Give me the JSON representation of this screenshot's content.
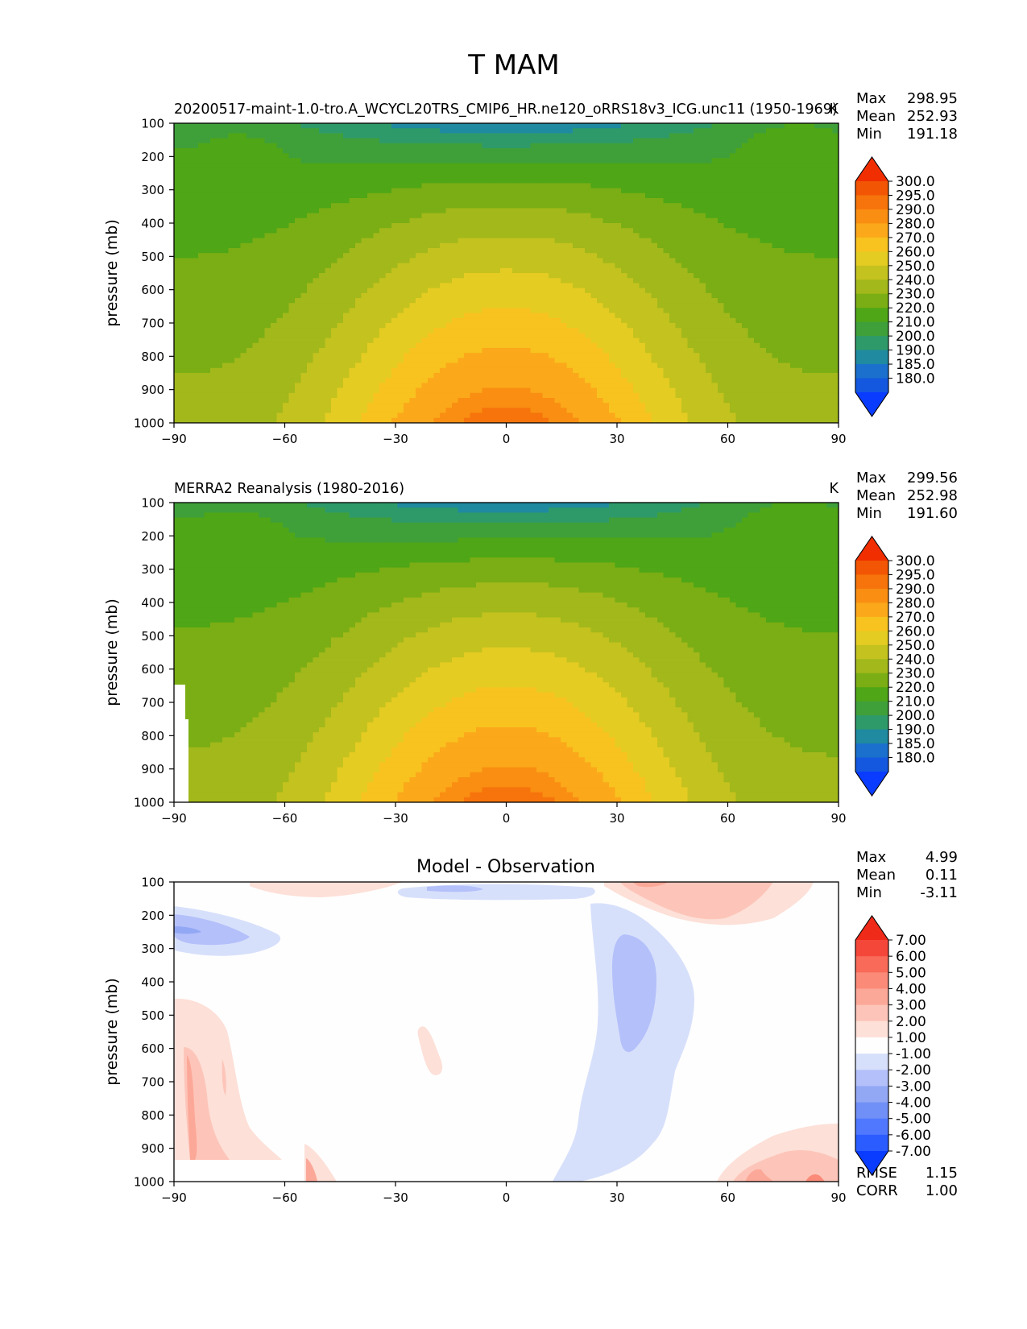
{
  "figure_title": "T MAM",
  "chart_data": [
    {
      "type": "heatmap",
      "panel": "test",
      "title_left": "20200517-maint-1.0-tro.A_WCYCL20TRS_CMIP6_HR.ne120_oRRS18v3_ICG.unc11 (1950-1969)",
      "title_right": "K",
      "xlabel": "",
      "ylabel": "pressure (mb)",
      "xlim": [
        -90,
        90
      ],
      "ylim": [
        1000,
        100
      ],
      "xticks": [
        "−90",
        "−60",
        "−30",
        "0",
        "30",
        "60",
        "90"
      ],
      "yticks": [
        "100",
        "200",
        "300",
        "400",
        "500",
        "600",
        "700",
        "800",
        "900",
        "1000"
      ],
      "stats": [
        {
          "label": "Max",
          "value": "298.95"
        },
        {
          "label": "Mean",
          "value": "252.93"
        },
        {
          "label": "Min",
          "value": "191.18"
        }
      ],
      "contour_levels": [
        180,
        185,
        190,
        200,
        210,
        220,
        230,
        240,
        250,
        260,
        270,
        280,
        290,
        295,
        300
      ],
      "colorbar_labels": [
        "300.0",
        "295.0",
        "290.0",
        "280.0",
        "270.0",
        "260.0",
        "250.0",
        "240.0",
        "230.0",
        "220.0",
        "210.0",
        "200.0",
        "190.0",
        "185.0",
        "180.0"
      ],
      "field_summary": {
        "tropopause_min_at_equator_100mb": 191,
        "surface_max_at_equator_1000mb": 299,
        "polar_surface_south": 245,
        "polar_surface_north": 255
      }
    },
    {
      "type": "heatmap",
      "panel": "reference",
      "title_left": "MERRA2 Reanalysis (1980-2016)",
      "title_right": "K",
      "xlabel": "",
      "ylabel": "pressure (mb)",
      "xlim": [
        -90,
        90
      ],
      "ylim": [
        1000,
        100
      ],
      "xticks": [
        "−90",
        "−60",
        "−30",
        "0",
        "30",
        "60",
        "90"
      ],
      "yticks": [
        "100",
        "200",
        "300",
        "400",
        "500",
        "600",
        "700",
        "800",
        "900",
        "1000"
      ],
      "stats": [
        {
          "label": "Max",
          "value": "299.56"
        },
        {
          "label": "Mean",
          "value": "252.98"
        },
        {
          "label": "Min",
          "value": "191.60"
        }
      ],
      "contour_levels": [
        180,
        185,
        190,
        200,
        210,
        220,
        230,
        240,
        250,
        260,
        270,
        280,
        290,
        295,
        300
      ],
      "colorbar_labels": [
        "300.0",
        "295.0",
        "290.0",
        "280.0",
        "270.0",
        "260.0",
        "250.0",
        "240.0",
        "230.0",
        "220.0",
        "210.0",
        "200.0",
        "190.0",
        "185.0",
        "180.0"
      ]
    },
    {
      "type": "heatmap",
      "panel": "difference",
      "title_center": "Model - Observation",
      "xlabel": "",
      "ylabel": "pressure (mb)",
      "xlim": [
        -90,
        90
      ],
      "ylim": [
        1000,
        100
      ],
      "xticks": [
        "−90",
        "−60",
        "−30",
        "0",
        "30",
        "60",
        "90"
      ],
      "yticks": [
        "100",
        "200",
        "300",
        "400",
        "500",
        "600",
        "700",
        "800",
        "900",
        "1000"
      ],
      "stats": [
        {
          "label": "Max",
          "value": "4.99"
        },
        {
          "label": "Mean",
          "value": "0.11"
        },
        {
          "label": "Min",
          "value": "-3.11"
        }
      ],
      "metrics": [
        {
          "label": "RMSE",
          "value": "1.15"
        },
        {
          "label": "CORR",
          "value": "1.00"
        }
      ],
      "contour_levels": [
        -7,
        -6,
        -5,
        -4,
        -3,
        -2,
        -1,
        1,
        2,
        3,
        4,
        5,
        6,
        7
      ],
      "colorbar_labels": [
        "7.00",
        "6.00",
        "5.00",
        "4.00",
        "3.00",
        "2.00",
        "1.00",
        "-1.00",
        "-2.00",
        "-3.00",
        "-4.00",
        "-5.00",
        "-6.00",
        "-7.00"
      ]
    }
  ],
  "colors": {
    "temperature_levels": [
      "#0a3cff",
      "#1458e0",
      "#1a70cc",
      "#1f8aa0",
      "#2e9a6a",
      "#3fa03a",
      "#4fa616",
      "#7aae14",
      "#a2b81b",
      "#c4c21e",
      "#e5cc22",
      "#f8c21f",
      "#fba81a",
      "#f98e12",
      "#f6740b",
      "#f25503",
      "#f02e00"
    ],
    "difference_levels": [
      "#0a3cff",
      "#2a5cff",
      "#5078ff",
      "#7190f7",
      "#93a8f5",
      "#b4c0fa",
      "#d7e0fb",
      "#fefefe",
      "#fde0d8",
      "#fdc5b9",
      "#fca898",
      "#fb8a78",
      "#f96a58",
      "#f4473a",
      "#ef2a18"
    ]
  }
}
